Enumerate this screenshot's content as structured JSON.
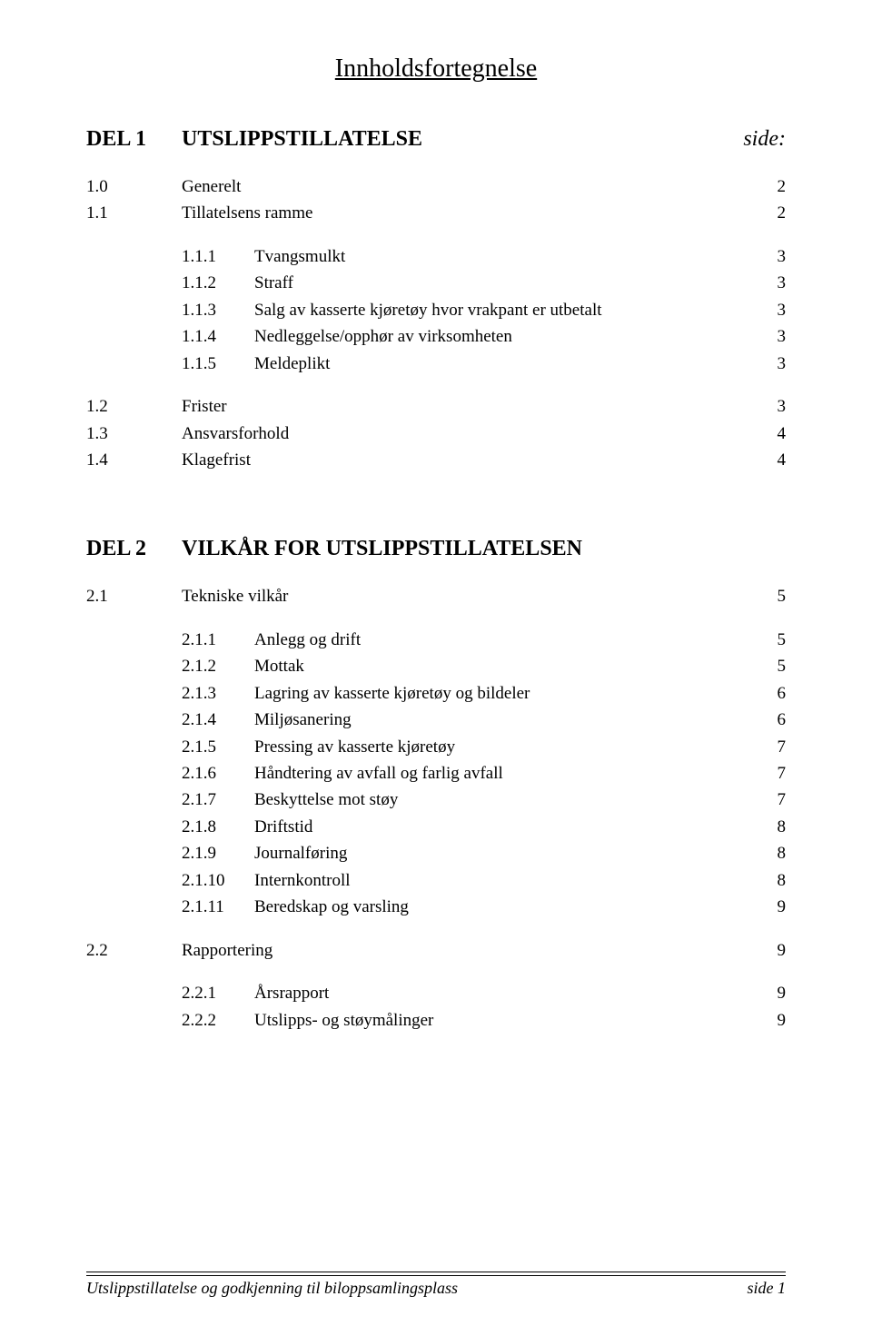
{
  "title": "Innholdsfortegnelse",
  "del1": {
    "num": "DEL 1",
    "label": "UTSLIPPSTILLATELSE",
    "page": "side:",
    "rows": [
      {
        "num": "1.0",
        "label": "Generelt",
        "page": "2"
      },
      {
        "num": "1.1",
        "label": "Tillatelsens ramme",
        "page": "2"
      }
    ],
    "subs1": [
      {
        "num": "1.1.1",
        "label": "Tvangsmulkt",
        "page": "3"
      },
      {
        "num": "1.1.2",
        "label": "Straff",
        "page": "3"
      },
      {
        "num": "1.1.3",
        "label": "Salg av kasserte kjøretøy hvor vrakpant er utbetalt",
        "page": "3"
      },
      {
        "num": "1.1.4",
        "label": "Nedleggelse/opphør av virksomheten",
        "page": "3"
      },
      {
        "num": "1.1.5",
        "label": "Meldeplikt",
        "page": "3"
      }
    ],
    "rows2": [
      {
        "num": "1.2",
        "label": "Frister",
        "page": "3"
      },
      {
        "num": "1.3",
        "label": "Ansvarsforhold",
        "page": "4"
      },
      {
        "num": "1.4",
        "label": "Klagefrist",
        "page": "4"
      }
    ]
  },
  "del2": {
    "num": "DEL 2",
    "label": "VILKÅR FOR UTSLIPPSTILLATELSEN",
    "rows": [
      {
        "num": "2.1",
        "label": "Tekniske vilkår",
        "page": "5"
      }
    ],
    "subs1": [
      {
        "num": "2.1.1",
        "label": "Anlegg og drift",
        "page": "5"
      },
      {
        "num": "2.1.2",
        "label": "Mottak",
        "page": "5"
      },
      {
        "num": "2.1.3",
        "label": "Lagring av kasserte kjøretøy og bildeler",
        "page": "6"
      },
      {
        "num": "2.1.4",
        "label": "Miljøsanering",
        "page": "6"
      },
      {
        "num": "2.1.5",
        "label": "Pressing av kasserte kjøretøy",
        "page": "7"
      },
      {
        "num": "2.1.6",
        "label": "Håndtering av avfall og farlig avfall",
        "page": "7"
      },
      {
        "num": "2.1.7",
        "label": "Beskyttelse mot støy",
        "page": "7"
      },
      {
        "num": "2.1.8",
        "label": "Driftstid",
        "page": "8"
      },
      {
        "num": "2.1.9",
        "label": "Journalføring",
        "page": "8"
      },
      {
        "num": "2.1.10",
        "label": "Internkontroll",
        "page": "8"
      },
      {
        "num": "2.1.11",
        "label": "Beredskap og varsling",
        "page": "9"
      }
    ],
    "rows2": [
      {
        "num": "2.2",
        "label": "Rapportering",
        "page": "9"
      }
    ],
    "subs2": [
      {
        "num": "2.2.1",
        "label": "Årsrapport",
        "page": "9"
      },
      {
        "num": "2.2.2",
        "label": "Utslipps- og støymålinger",
        "page": "9"
      }
    ]
  },
  "footer": {
    "left": "Utslippstillatelse og godkjenning til biloppsamlingsplass",
    "right": "side 1"
  }
}
